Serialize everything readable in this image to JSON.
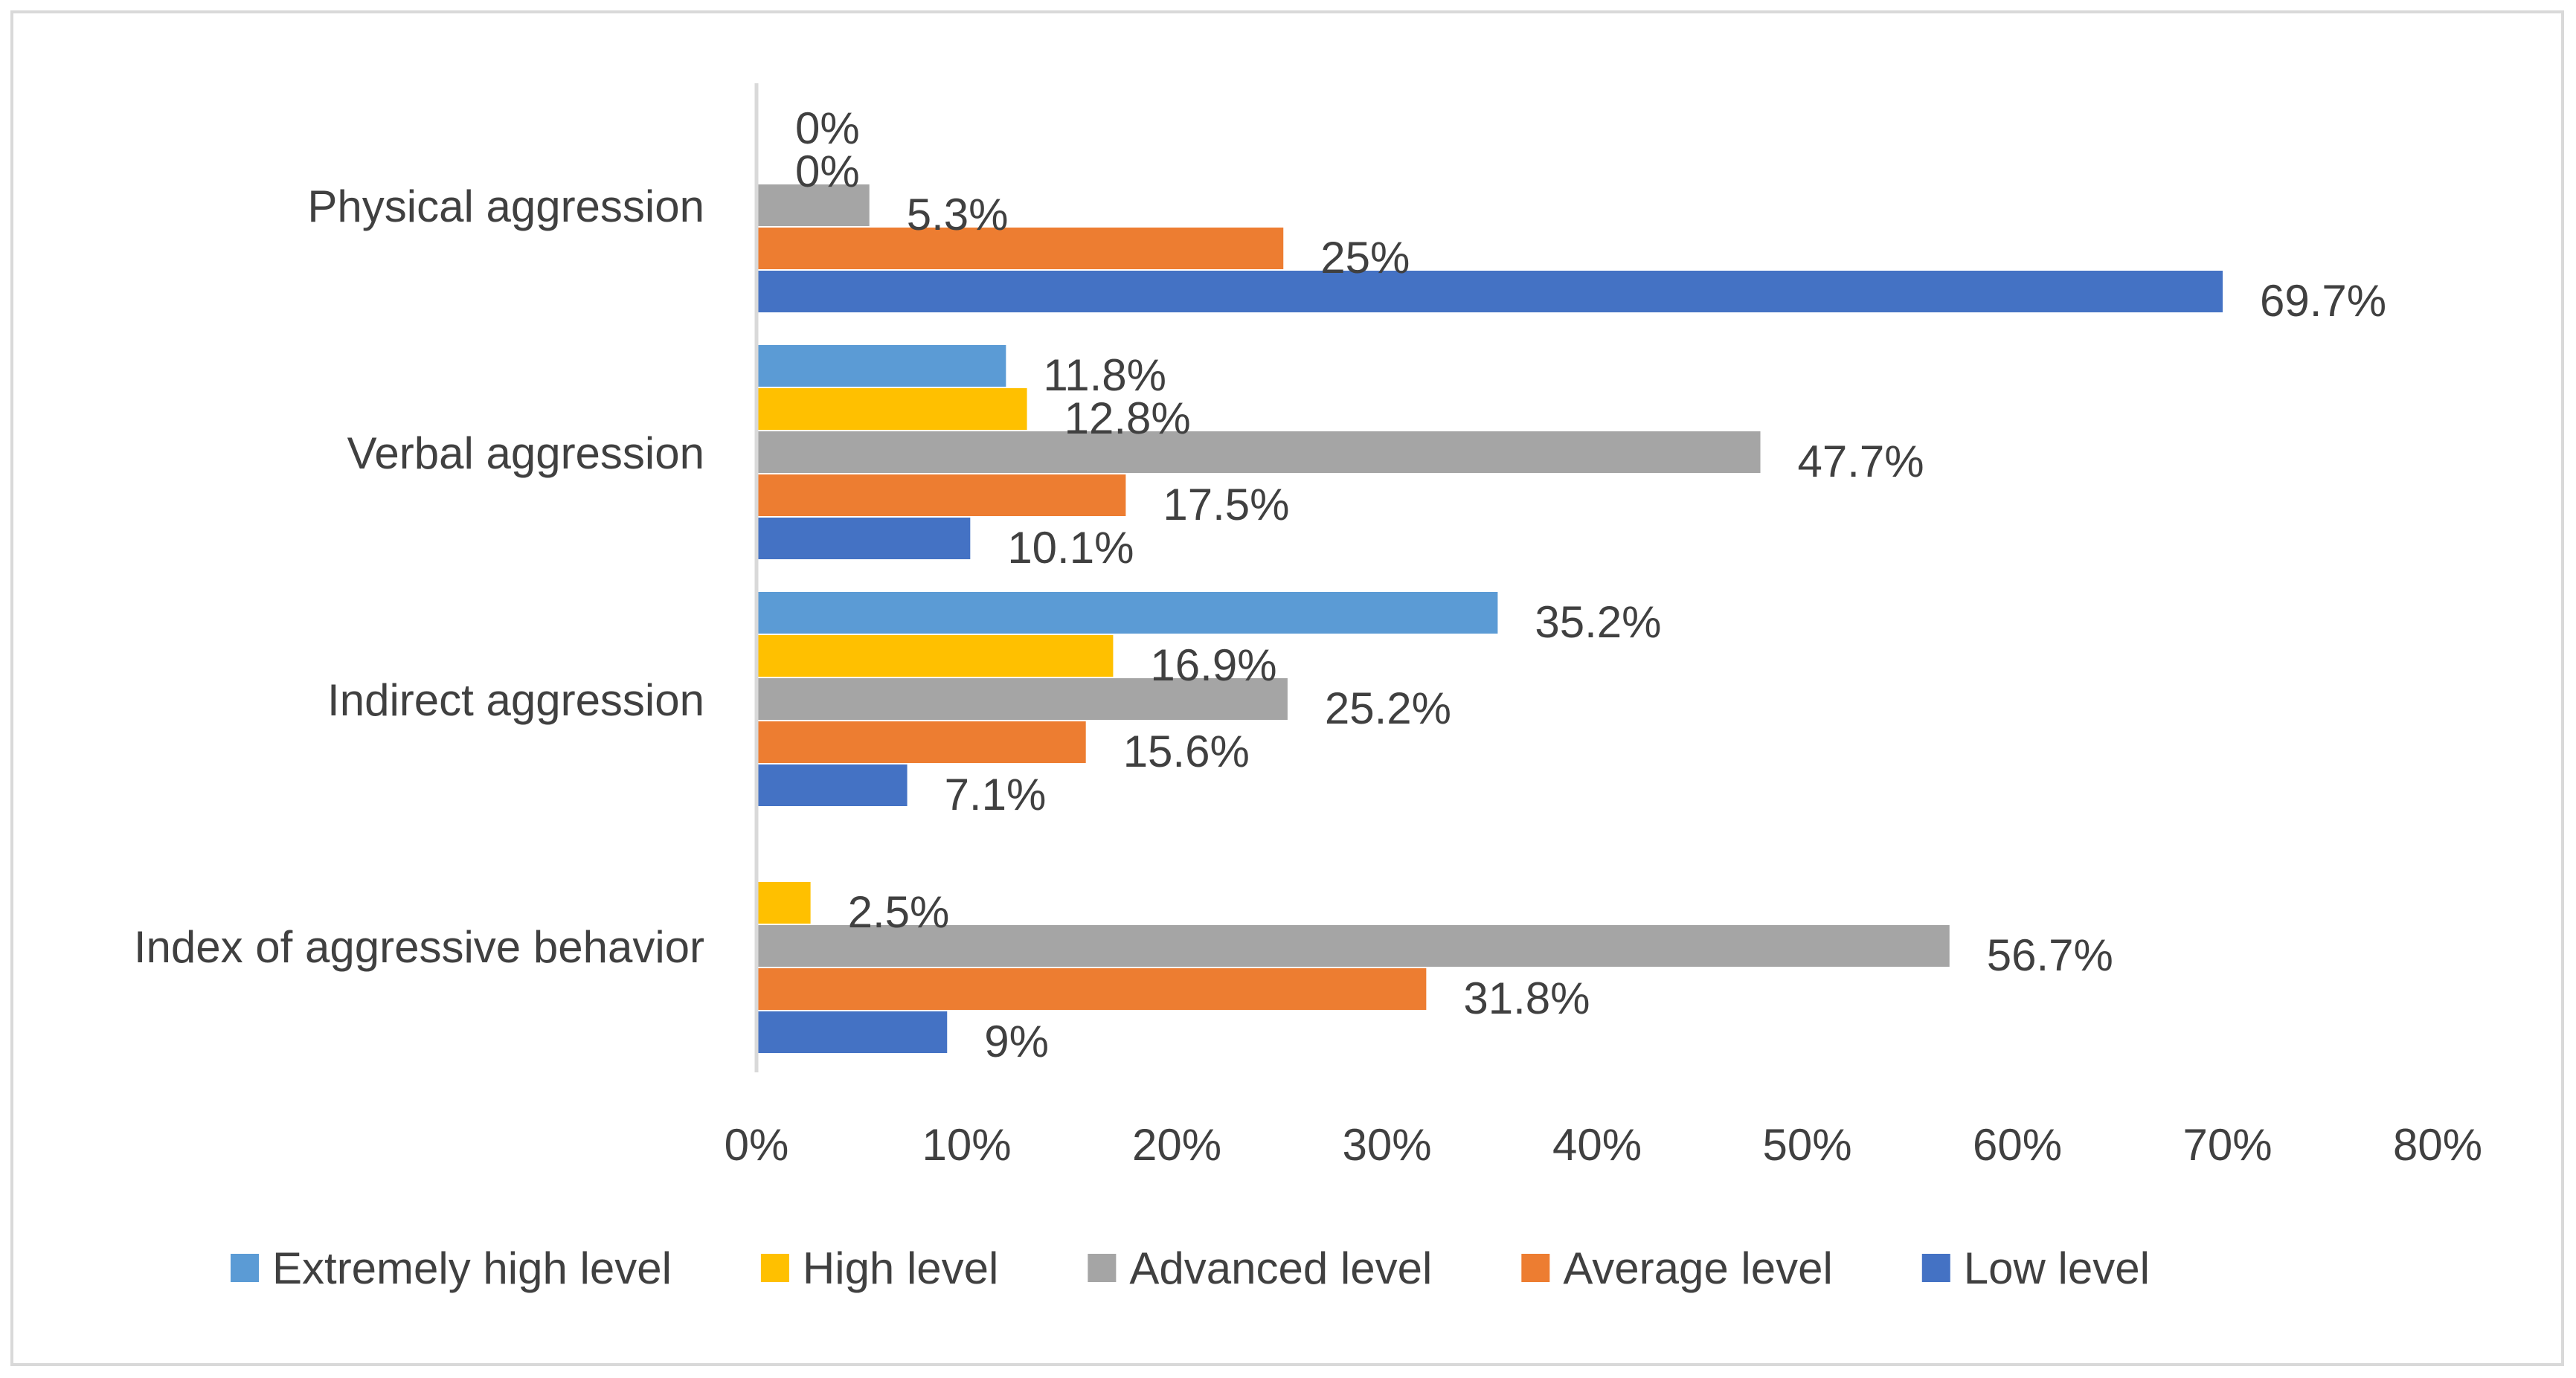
{
  "chart_data": {
    "type": "bar",
    "orientation": "horizontal",
    "categories": [
      "Physical aggression",
      "Verbal aggression",
      "Indirect aggression",
      "Index of aggressive behavior"
    ],
    "series": [
      {
        "name": "Extremely high level",
        "color": "#5b9bd5",
        "values": [
          0,
          11.8,
          35.2,
          null
        ],
        "labels": [
          "0%",
          "11.8%",
          "35.2%",
          null
        ]
      },
      {
        "name": "High level",
        "color": "#ffc000",
        "values": [
          0,
          12.8,
          16.9,
          2.5
        ],
        "labels": [
          "0%",
          "12.8%",
          "16.9%",
          "2.5%"
        ]
      },
      {
        "name": "Advanced level",
        "color": "#a5a5a5",
        "values": [
          5.3,
          47.7,
          25.2,
          56.7
        ],
        "labels": [
          "5.3%",
          "47.7%",
          "25.2%",
          "56.7%"
        ]
      },
      {
        "name": "Average level",
        "color": "#ed7d31",
        "values": [
          25,
          17.5,
          15.6,
          31.8
        ],
        "labels": [
          "25%",
          "17.5%",
          "15.6%",
          "31.8%"
        ]
      },
      {
        "name": "Low level",
        "color": "#4472c4",
        "values": [
          69.7,
          10.1,
          7.1,
          9
        ],
        "labels": [
          "69.7%",
          "10.1%",
          "7.1%",
          "9%"
        ]
      }
    ],
    "xlim": [
      0,
      80
    ],
    "x_ticks": [
      0,
      10,
      20,
      30,
      40,
      50,
      60,
      70,
      80
    ],
    "x_tick_labels": [
      "0%",
      "10%",
      "20%",
      "30%",
      "40%",
      "50%",
      "60%",
      "70%",
      "80%"
    ],
    "title": "",
    "xlabel": "",
    "ylabel": "",
    "grid": false,
    "legend_position": "bottom"
  }
}
